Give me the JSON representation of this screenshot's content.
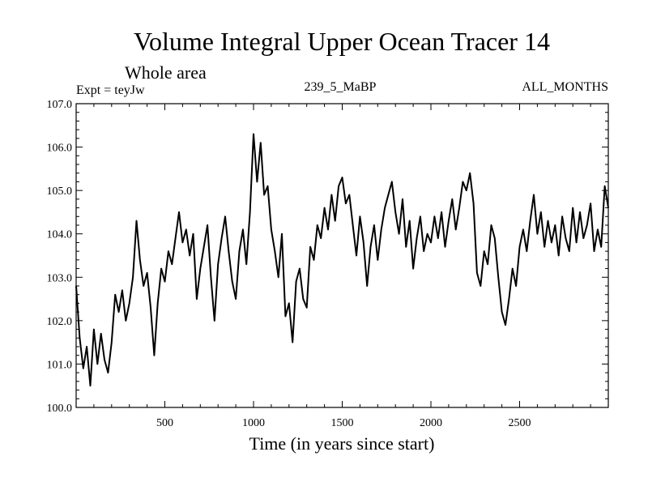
{
  "chart_data": {
    "type": "line",
    "title": "Volume Integral Upper Ocean Tracer 14",
    "subtitle": "Whole area",
    "experiment_label": "Expt = teyJw",
    "run_label": "239_5_MaBP",
    "months_label": "ALL_MONTHS",
    "xlabel": "Time (in years since start)",
    "ylabel": "",
    "xlim": [
      0,
      3000
    ],
    "ylim": [
      100.0,
      107.0
    ],
    "x_ticks": [
      500,
      1000,
      1500,
      2000,
      2500
    ],
    "y_ticks": [
      "100.0",
      "101.0",
      "102.0",
      "103.0",
      "104.0",
      "105.0",
      "106.0",
      "107.0"
    ],
    "grid": false,
    "series": [
      {
        "name": "Tracer 14",
        "x": [
          0,
          20,
          40,
          60,
          80,
          100,
          120,
          140,
          160,
          180,
          200,
          220,
          240,
          260,
          280,
          300,
          320,
          340,
          360,
          380,
          400,
          420,
          440,
          460,
          480,
          500,
          520,
          540,
          560,
          580,
          600,
          620,
          640,
          660,
          680,
          700,
          720,
          740,
          760,
          780,
          800,
          820,
          840,
          860,
          880,
          900,
          920,
          940,
          960,
          980,
          1000,
          1020,
          1040,
          1060,
          1080,
          1100,
          1120,
          1140,
          1160,
          1180,
          1200,
          1220,
          1240,
          1260,
          1280,
          1300,
          1320,
          1340,
          1360,
          1380,
          1400,
          1420,
          1440,
          1460,
          1480,
          1500,
          1520,
          1540,
          1560,
          1580,
          1600,
          1620,
          1640,
          1660,
          1680,
          1700,
          1720,
          1740,
          1760,
          1780,
          1800,
          1820,
          1840,
          1860,
          1880,
          1900,
          1920,
          1940,
          1960,
          1980,
          2000,
          2020,
          2040,
          2060,
          2080,
          2100,
          2120,
          2140,
          2160,
          2180,
          2200,
          2220,
          2240,
          2260,
          2280,
          2300,
          2320,
          2340,
          2360,
          2380,
          2400,
          2420,
          2440,
          2460,
          2480,
          2500,
          2520,
          2540,
          2560,
          2580,
          2600,
          2620,
          2640,
          2660,
          2680,
          2700,
          2720,
          2740,
          2760,
          2780,
          2800,
          2820,
          2840,
          2860,
          2880,
          2900,
          2920,
          2940,
          2960,
          2980,
          3000
        ],
        "values": [
          102.8,
          101.6,
          100.9,
          101.4,
          100.5,
          101.8,
          101.0,
          101.7,
          101.1,
          100.8,
          101.5,
          102.6,
          102.2,
          102.7,
          102.0,
          102.4,
          103.0,
          104.3,
          103.4,
          102.8,
          103.1,
          102.3,
          101.2,
          102.4,
          103.2,
          102.9,
          103.6,
          103.3,
          103.9,
          104.5,
          103.8,
          104.1,
          103.5,
          104.0,
          102.5,
          103.2,
          103.7,
          104.2,
          103.0,
          102.0,
          103.3,
          103.9,
          104.4,
          103.6,
          102.9,
          102.5,
          103.6,
          104.1,
          103.3,
          104.5,
          106.3,
          105.2,
          106.1,
          104.9,
          105.1,
          104.1,
          103.6,
          103.0,
          104.0,
          102.1,
          102.4,
          101.5,
          102.9,
          103.2,
          102.5,
          102.3,
          103.7,
          103.4,
          104.2,
          103.9,
          104.6,
          104.1,
          104.9,
          104.3,
          105.1,
          105.3,
          104.7,
          104.9,
          104.2,
          103.5,
          104.4,
          103.8,
          102.8,
          103.7,
          104.2,
          103.4,
          104.1,
          104.6,
          104.9,
          105.2,
          104.5,
          104.0,
          104.8,
          103.7,
          104.3,
          103.2,
          103.9,
          104.4,
          103.6,
          104.0,
          103.8,
          104.4,
          103.9,
          104.5,
          103.7,
          104.3,
          104.8,
          104.1,
          104.6,
          105.2,
          105.0,
          105.4,
          104.7,
          103.1,
          102.8,
          103.6,
          103.3,
          104.2,
          103.9,
          103.0,
          102.2,
          101.9,
          102.5,
          103.2,
          102.8,
          103.7,
          104.1,
          103.6,
          104.3,
          104.9,
          104.0,
          104.5,
          103.7,
          104.3,
          103.8,
          104.2,
          103.5,
          104.4,
          103.9,
          103.6,
          104.6,
          103.8,
          104.5,
          103.9,
          104.2,
          104.7,
          103.6,
          104.1,
          103.7,
          105.1,
          104.6
        ]
      }
    ]
  }
}
